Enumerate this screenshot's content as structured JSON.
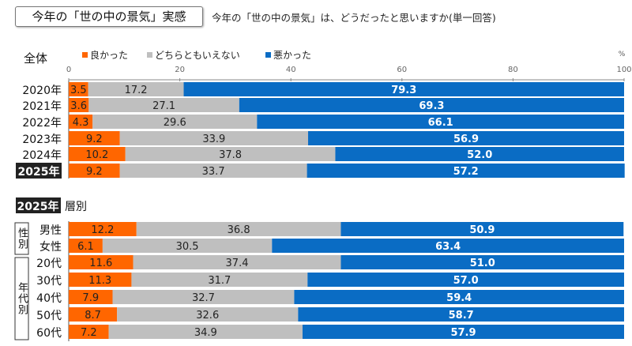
{
  "header": {
    "title": "今年の「世の中の景気」実感",
    "question": "今年の「世の中の景気」は、どうだったと思いますか(単一回答)"
  },
  "chart_data": [
    {
      "type": "bar",
      "orientation": "horizontal",
      "stacked": true,
      "title": "全体",
      "unit": "%",
      "xlim": [
        0,
        100
      ],
      "xticks": [
        0,
        20,
        40,
        60,
        80,
        100
      ],
      "legend": {
        "placement": "top",
        "entries": [
          "良かった",
          "どちらともいえない",
          "悪かった"
        ]
      },
      "colors": [
        "#ff6600",
        "#bfbfbf",
        "#0a6cc4"
      ],
      "categories": [
        "2020年",
        "2021年",
        "2022年",
        "2023年",
        "2024年",
        "2025年"
      ],
      "highlight": "2025年",
      "series": [
        {
          "name": "良かった",
          "values": [
            3.5,
            3.6,
            4.3,
            9.2,
            10.2,
            9.2
          ]
        },
        {
          "name": "どちらともいえない",
          "values": [
            17.2,
            27.1,
            29.6,
            33.9,
            37.8,
            33.7
          ]
        },
        {
          "name": "悪かった",
          "values": [
            79.3,
            69.3,
            66.1,
            56.9,
            52.0,
            57.2
          ]
        }
      ]
    },
    {
      "type": "bar",
      "orientation": "horizontal",
      "stacked": true,
      "title_badge": "2025年",
      "title": "層別",
      "xlim": [
        0,
        100
      ],
      "groups": [
        {
          "label": "性別",
          "categories": [
            "男性",
            "女性"
          ]
        },
        {
          "label": "年代別",
          "categories": [
            "20代",
            "30代",
            "40代",
            "50代",
            "60代"
          ]
        }
      ],
      "categories": [
        "男性",
        "女性",
        "20代",
        "30代",
        "40代",
        "50代",
        "60代"
      ],
      "series": [
        {
          "name": "良かった",
          "values": [
            12.2,
            6.1,
            11.6,
            11.3,
            7.9,
            8.7,
            7.2
          ]
        },
        {
          "name": "どちらともいえない",
          "values": [
            36.8,
            30.5,
            37.4,
            31.7,
            32.7,
            32.6,
            34.9
          ]
        },
        {
          "name": "悪かった",
          "values": [
            50.9,
            63.4,
            51.0,
            57.0,
            59.4,
            58.7,
            57.9
          ]
        }
      ]
    }
  ]
}
